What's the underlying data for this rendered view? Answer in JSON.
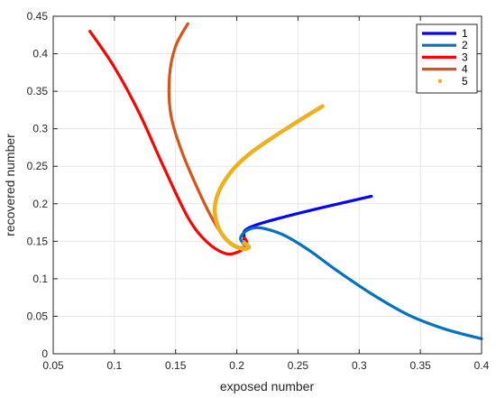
{
  "chart_data": {
    "type": "line",
    "xlabel": "exposed number",
    "ylabel": "recovered number",
    "xlim": [
      0.05,
      0.4
    ],
    "ylim": [
      0,
      0.45
    ],
    "xticks": [
      0.05,
      0.1,
      0.15,
      0.2,
      0.25,
      0.3,
      0.35,
      0.4
    ],
    "yticks": [
      0,
      0.05,
      0.1,
      0.15,
      0.2,
      0.25,
      0.3,
      0.35,
      0.4,
      0.45
    ],
    "xtick_labels": [
      "0.05",
      "0.1",
      "0.15",
      "0.2",
      "0.25",
      "0.3",
      "0.35",
      "0.4"
    ],
    "ytick_labels": [
      "0",
      "0.05",
      "0.1",
      "0.15",
      "0.2",
      "0.25",
      "0.3",
      "0.35",
      "0.4",
      "0.45"
    ],
    "grid": true,
    "legend_position": "top-right",
    "series": [
      {
        "name": "1",
        "color": "#0000ff",
        "style": "line",
        "points": [
          [
            0.31,
            0.21
          ],
          [
            0.27,
            0.195
          ],
          [
            0.24,
            0.183
          ],
          [
            0.22,
            0.174
          ],
          [
            0.21,
            0.168
          ],
          [
            0.206,
            0.163
          ],
          [
            0.206,
            0.158
          ],
          [
            0.206,
            0.153
          ]
        ]
      },
      {
        "name": "2",
        "color": "#0072bd",
        "style": "line",
        "points": [
          [
            0.4,
            0.02
          ],
          [
            0.37,
            0.033
          ],
          [
            0.34,
            0.052
          ],
          [
            0.31,
            0.08
          ],
          [
            0.28,
            0.113
          ],
          [
            0.26,
            0.137
          ],
          [
            0.24,
            0.157
          ],
          [
            0.225,
            0.166
          ],
          [
            0.215,
            0.168
          ],
          [
            0.207,
            0.163
          ],
          [
            0.203,
            0.154
          ],
          [
            0.206,
            0.146
          ],
          [
            0.21,
            0.142
          ]
        ]
      },
      {
        "name": "3",
        "color": "#ff0000",
        "style": "line",
        "points": [
          [
            0.08,
            0.43
          ],
          [
            0.1,
            0.382
          ],
          [
            0.12,
            0.322
          ],
          [
            0.14,
            0.25
          ],
          [
            0.16,
            0.182
          ],
          [
            0.175,
            0.15
          ],
          [
            0.19,
            0.134
          ],
          [
            0.2,
            0.135
          ],
          [
            0.207,
            0.143
          ],
          [
            0.208,
            0.15
          ],
          [
            0.206,
            0.155
          ]
        ]
      },
      {
        "name": "4",
        "color": "#d95319",
        "style": "line",
        "points": [
          [
            0.16,
            0.44
          ],
          [
            0.15,
            0.41
          ],
          [
            0.145,
            0.37
          ],
          [
            0.146,
            0.32
          ],
          [
            0.155,
            0.27
          ],
          [
            0.168,
            0.22
          ],
          [
            0.18,
            0.18
          ],
          [
            0.19,
            0.155
          ],
          [
            0.2,
            0.143
          ],
          [
            0.206,
            0.142
          ]
        ]
      },
      {
        "name": "5",
        "color": "#edb120",
        "style": "dots",
        "points": [
          [
            0.27,
            0.33
          ],
          [
            0.25,
            0.31
          ],
          [
            0.23,
            0.289
          ],
          [
            0.21,
            0.266
          ],
          [
            0.195,
            0.242
          ],
          [
            0.185,
            0.215
          ],
          [
            0.182,
            0.19
          ],
          [
            0.186,
            0.165
          ],
          [
            0.195,
            0.147
          ],
          [
            0.205,
            0.14
          ],
          [
            0.21,
            0.142
          ],
          [
            0.206,
            0.148
          ]
        ]
      }
    ]
  }
}
